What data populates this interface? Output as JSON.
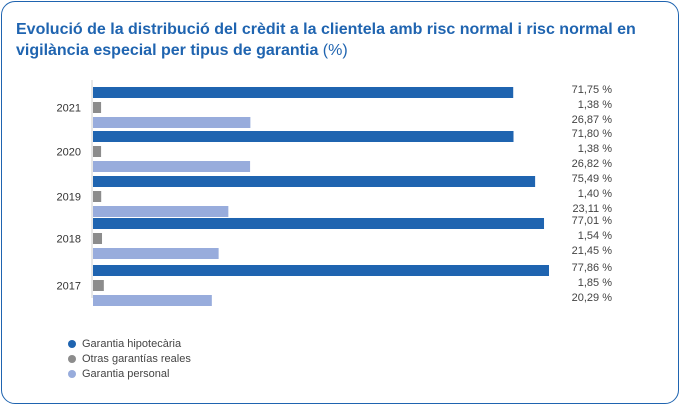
{
  "title": "Evolució de la distribució del crèdit a la clientela amb risc normal i risc normal en vigilància especial per tipus de garantia",
  "title_unit": "(%)",
  "colors": {
    "border": "#1f64b0",
    "title": "#1f64b0"
  },
  "chart_data": {
    "type": "bar",
    "orientation": "horizontal",
    "categories": [
      "2021",
      "2020",
      "2019",
      "2018",
      "2017"
    ],
    "series": [
      {
        "name": "Garantia hipotecària",
        "color": "#1f64b0",
        "values": [
          71.75,
          71.8,
          75.49,
          77.01,
          77.86
        ],
        "labels": [
          "71,75 %",
          "71,80 %",
          "75,49 %",
          "77,01 %",
          "77,86 %"
        ]
      },
      {
        "name": "Otras garantías reales",
        "color": "#8c8c8c",
        "values": [
          1.38,
          1.38,
          1.4,
          1.54,
          1.85
        ],
        "labels": [
          "1,38 %",
          "1,38 %",
          "1,40 %",
          "1,54 %",
          "1,85 %"
        ]
      },
      {
        "name": "Garantia personal",
        "color": "#98acdc",
        "values": [
          26.87,
          26.82,
          23.11,
          21.45,
          20.29
        ],
        "labels": [
          "26,87 %",
          "26,82 %",
          "23,11 %",
          "21,45 %",
          "20,29 %"
        ]
      }
    ],
    "xlim": [
      0,
      80
    ],
    "grid": false,
    "legend_position": "bottom-left"
  }
}
